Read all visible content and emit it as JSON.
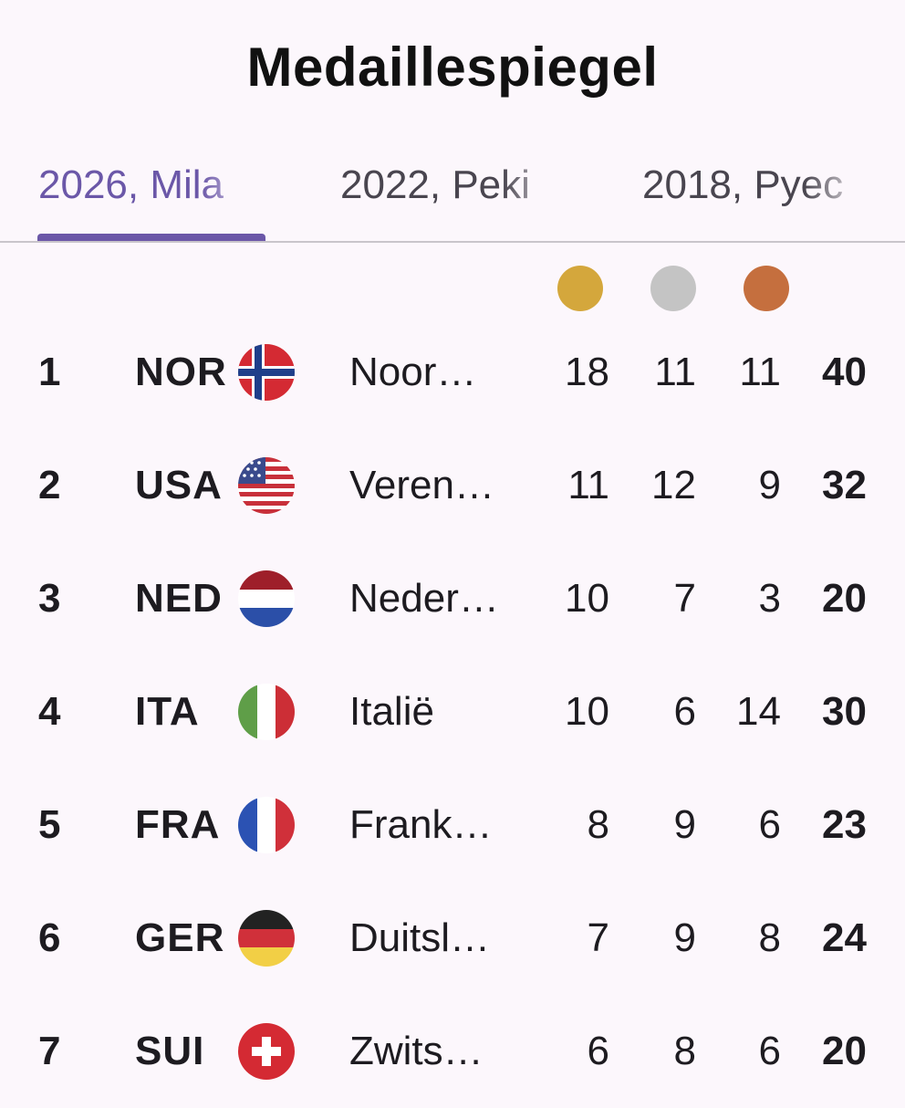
{
  "title": "Medaillespiegel",
  "tabs": [
    {
      "label": "2026, Mila",
      "active": true
    },
    {
      "label": "2022, Peki",
      "active": false
    },
    {
      "label": "2018, Pyec",
      "active": false
    }
  ],
  "medal_colors": {
    "gold": "#d4a73c",
    "silver": "#c4c4c4",
    "bronze": "#c56f3e"
  },
  "accent_color": "#6b57a8",
  "rows": [
    {
      "rank": "1",
      "code": "NOR",
      "flag": "norway-flag-icon",
      "name": "Noor…",
      "gold": "18",
      "silver": "11",
      "bronze": "11",
      "total": "40"
    },
    {
      "rank": "2",
      "code": "USA",
      "flag": "usa-flag-icon",
      "name": "Veren…",
      "gold": "11",
      "silver": "12",
      "bronze": "9",
      "total": "32"
    },
    {
      "rank": "3",
      "code": "NED",
      "flag": "netherlands-flag-icon",
      "name": "Neder…",
      "gold": "10",
      "silver": "7",
      "bronze": "3",
      "total": "20"
    },
    {
      "rank": "4",
      "code": "ITA",
      "flag": "italy-flag-icon",
      "name": "Italië",
      "gold": "10",
      "silver": "6",
      "bronze": "14",
      "total": "30"
    },
    {
      "rank": "5",
      "code": "FRA",
      "flag": "france-flag-icon",
      "name": "Frank…",
      "gold": "8",
      "silver": "9",
      "bronze": "6",
      "total": "23"
    },
    {
      "rank": "6",
      "code": "GER",
      "flag": "germany-flag-icon",
      "name": "Duitsl…",
      "gold": "7",
      "silver": "9",
      "bronze": "8",
      "total": "24"
    },
    {
      "rank": "7",
      "code": "SUI",
      "flag": "switzerland-flag-icon",
      "name": "Zwits…",
      "gold": "6",
      "silver": "8",
      "bronze": "6",
      "total": "20"
    }
  ]
}
